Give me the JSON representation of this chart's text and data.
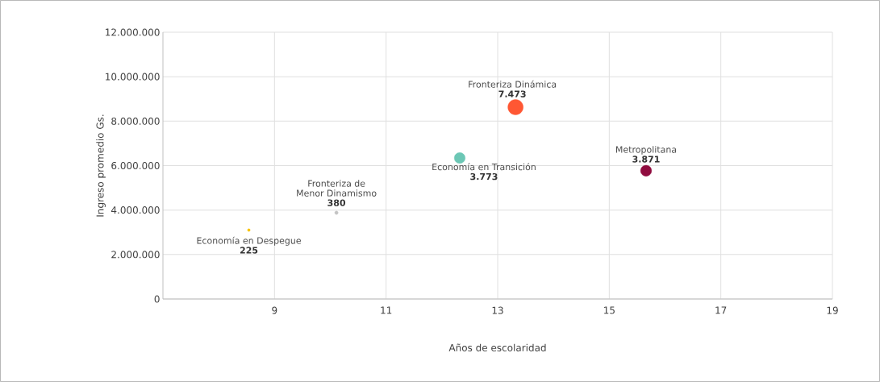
{
  "chart_data": {
    "type": "bubble",
    "xlabel": "Años de escolaridad",
    "ylabel": "Ingreso promedio Gs.",
    "series": [
      {
        "name": "Economía en Despegue",
        "color": "#f7c200",
        "x": [
          8.54
        ],
        "values": [
          3100000
        ],
        "sizes": [
          0.03
        ]
      },
      {
        "name": "Fronteriza de Menor Dinamismo",
        "color": "#c4c4c4",
        "x": [
          10.11
        ],
        "values": [
          3880000
        ],
        "sizes": [
          0.051
        ]
      },
      {
        "name": "Economía en Transición",
        "color": "#6cc7b5",
        "x": [
          12.32
        ],
        "values": [
          6340000
        ],
        "sizes": [
          0.505
        ]
      },
      {
        "name": "Fronteriza Dinámica",
        "color": "#ff5733",
        "x": [
          13.32
        ],
        "values": [
          8630000
        ],
        "sizes": [
          1
        ]
      },
      {
        "name": "Metropolitana",
        "color": "#900c3f",
        "x": [
          15.66
        ],
        "values": [
          5770000
        ],
        "sizes": [
          0.518
        ]
      }
    ],
    "annotations": [
      {
        "text": "225",
        "x": 8.54,
        "y": 3100000
      },
      {
        "text": "380",
        "x": 10.11,
        "y": 3880000
      },
      {
        "text": "3.773",
        "x": 12.32,
        "y": 6340000
      },
      {
        "text": "7.473",
        "x": 13.32,
        "y": 8630000
      },
      {
        "text": "3.871",
        "x": 15.66,
        "y": 5770000
      }
    ],
    "xlim": [
      7,
      19
    ],
    "xticks": [
      9,
      11,
      13,
      15,
      17,
      19
    ],
    "ylim": [
      0,
      12000000
    ],
    "yticks": [
      {
        "value": 0,
        "label": "0"
      },
      {
        "value": 2000000,
        "label": "2.000.000"
      },
      {
        "value": 4000000,
        "label": "4.000.000"
      },
      {
        "value": 6000000,
        "label": "6.000.000"
      },
      {
        "value": 8000000,
        "label": "8.000.000"
      },
      {
        "value": 10000000,
        "label": "10.000.000"
      },
      {
        "value": 12000000,
        "label": "12.000.000"
      }
    ],
    "grid": true,
    "legend": false,
    "marker": "circle"
  }
}
